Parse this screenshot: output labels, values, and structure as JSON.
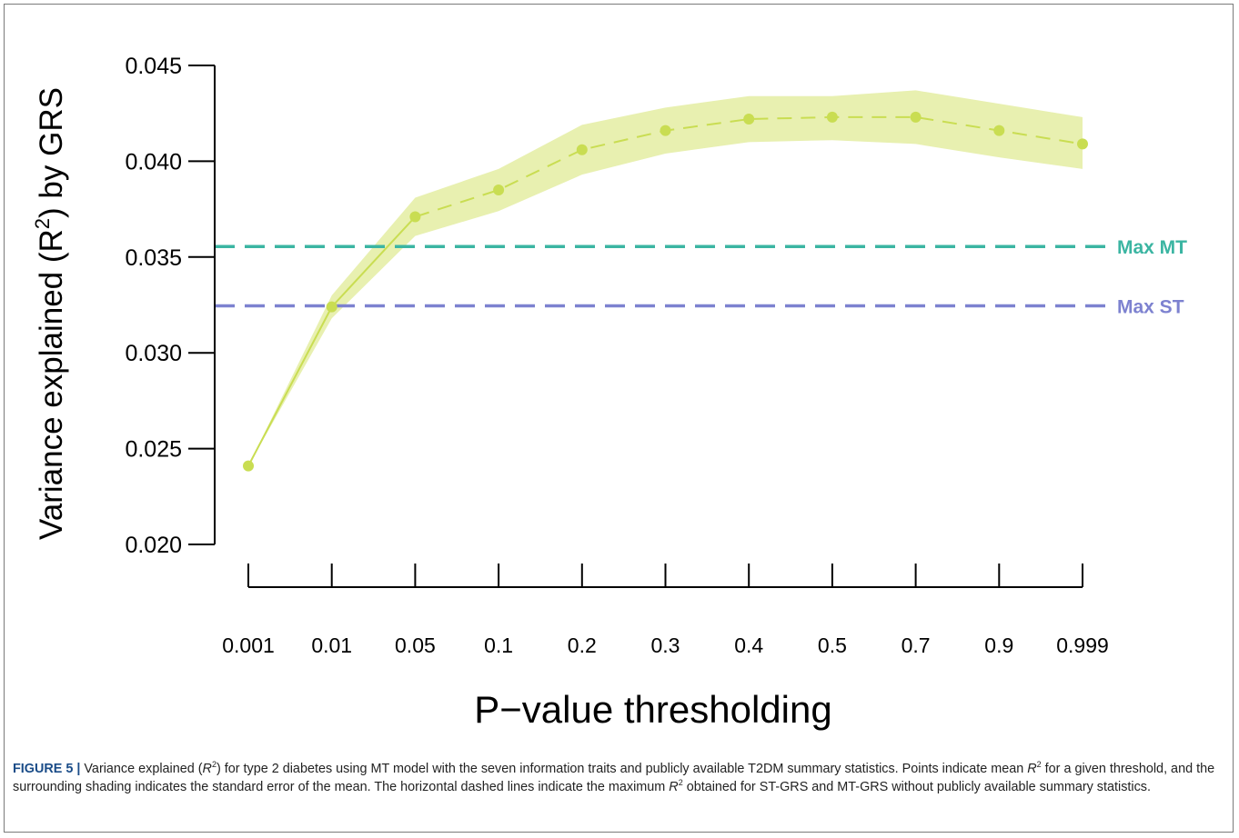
{
  "chart_data": {
    "type": "line",
    "xlabel": "P−value thresholding",
    "ylabel_parts": [
      "Variance explained (R",
      "2",
      ") by GRS"
    ],
    "categories": [
      "0.001",
      "0.01",
      "0.05",
      "0.1",
      "0.2",
      "0.3",
      "0.4",
      "0.5",
      "0.7",
      "0.9",
      "0.999"
    ],
    "y_ticks": [
      "0.020",
      "0.025",
      "0.030",
      "0.035",
      "0.040",
      "0.045"
    ],
    "ylim": [
      0.02,
      0.045
    ],
    "series": [
      {
        "values": [
          0.0241,
          0.0324,
          0.0371,
          0.0385,
          0.0406,
          0.0416,
          0.0422,
          0.0423,
          0.0423,
          0.0416,
          0.0409
        ],
        "se_lower": [
          0.0241,
          0.0318,
          0.0361,
          0.0374,
          0.0393,
          0.0404,
          0.041,
          0.0411,
          0.0409,
          0.0402,
          0.0396
        ],
        "se_upper": [
          0.0241,
          0.033,
          0.0381,
          0.0396,
          0.0419,
          0.0428,
          0.0434,
          0.0434,
          0.0437,
          0.043,
          0.0423
        ],
        "color": "#c9dd52",
        "band_color": "#e8f0b0"
      }
    ],
    "reference_lines": [
      {
        "label": "Max MT",
        "value": 0.03555,
        "color": "#3bb5a2"
      },
      {
        "label": "Max ST",
        "value": 0.03245,
        "color": "#7d82d0"
      }
    ],
    "grid": false
  },
  "caption": {
    "lead": "FIGURE 5 |",
    "part1": " Variance explained (",
    "r": "R",
    "sup": "2",
    "part2": ") for type 2 diabetes using MT model with the seven information traits and publicly available T2DM summary statistics. Points indicate mean ",
    "part3": " for a given threshold, and the surrounding shading indicates the standard error of the mean. The horizontal dashed lines indicate the maximum ",
    "part4": " obtained for ST-GRS and MT-GRS without publicly available summary statistics."
  }
}
